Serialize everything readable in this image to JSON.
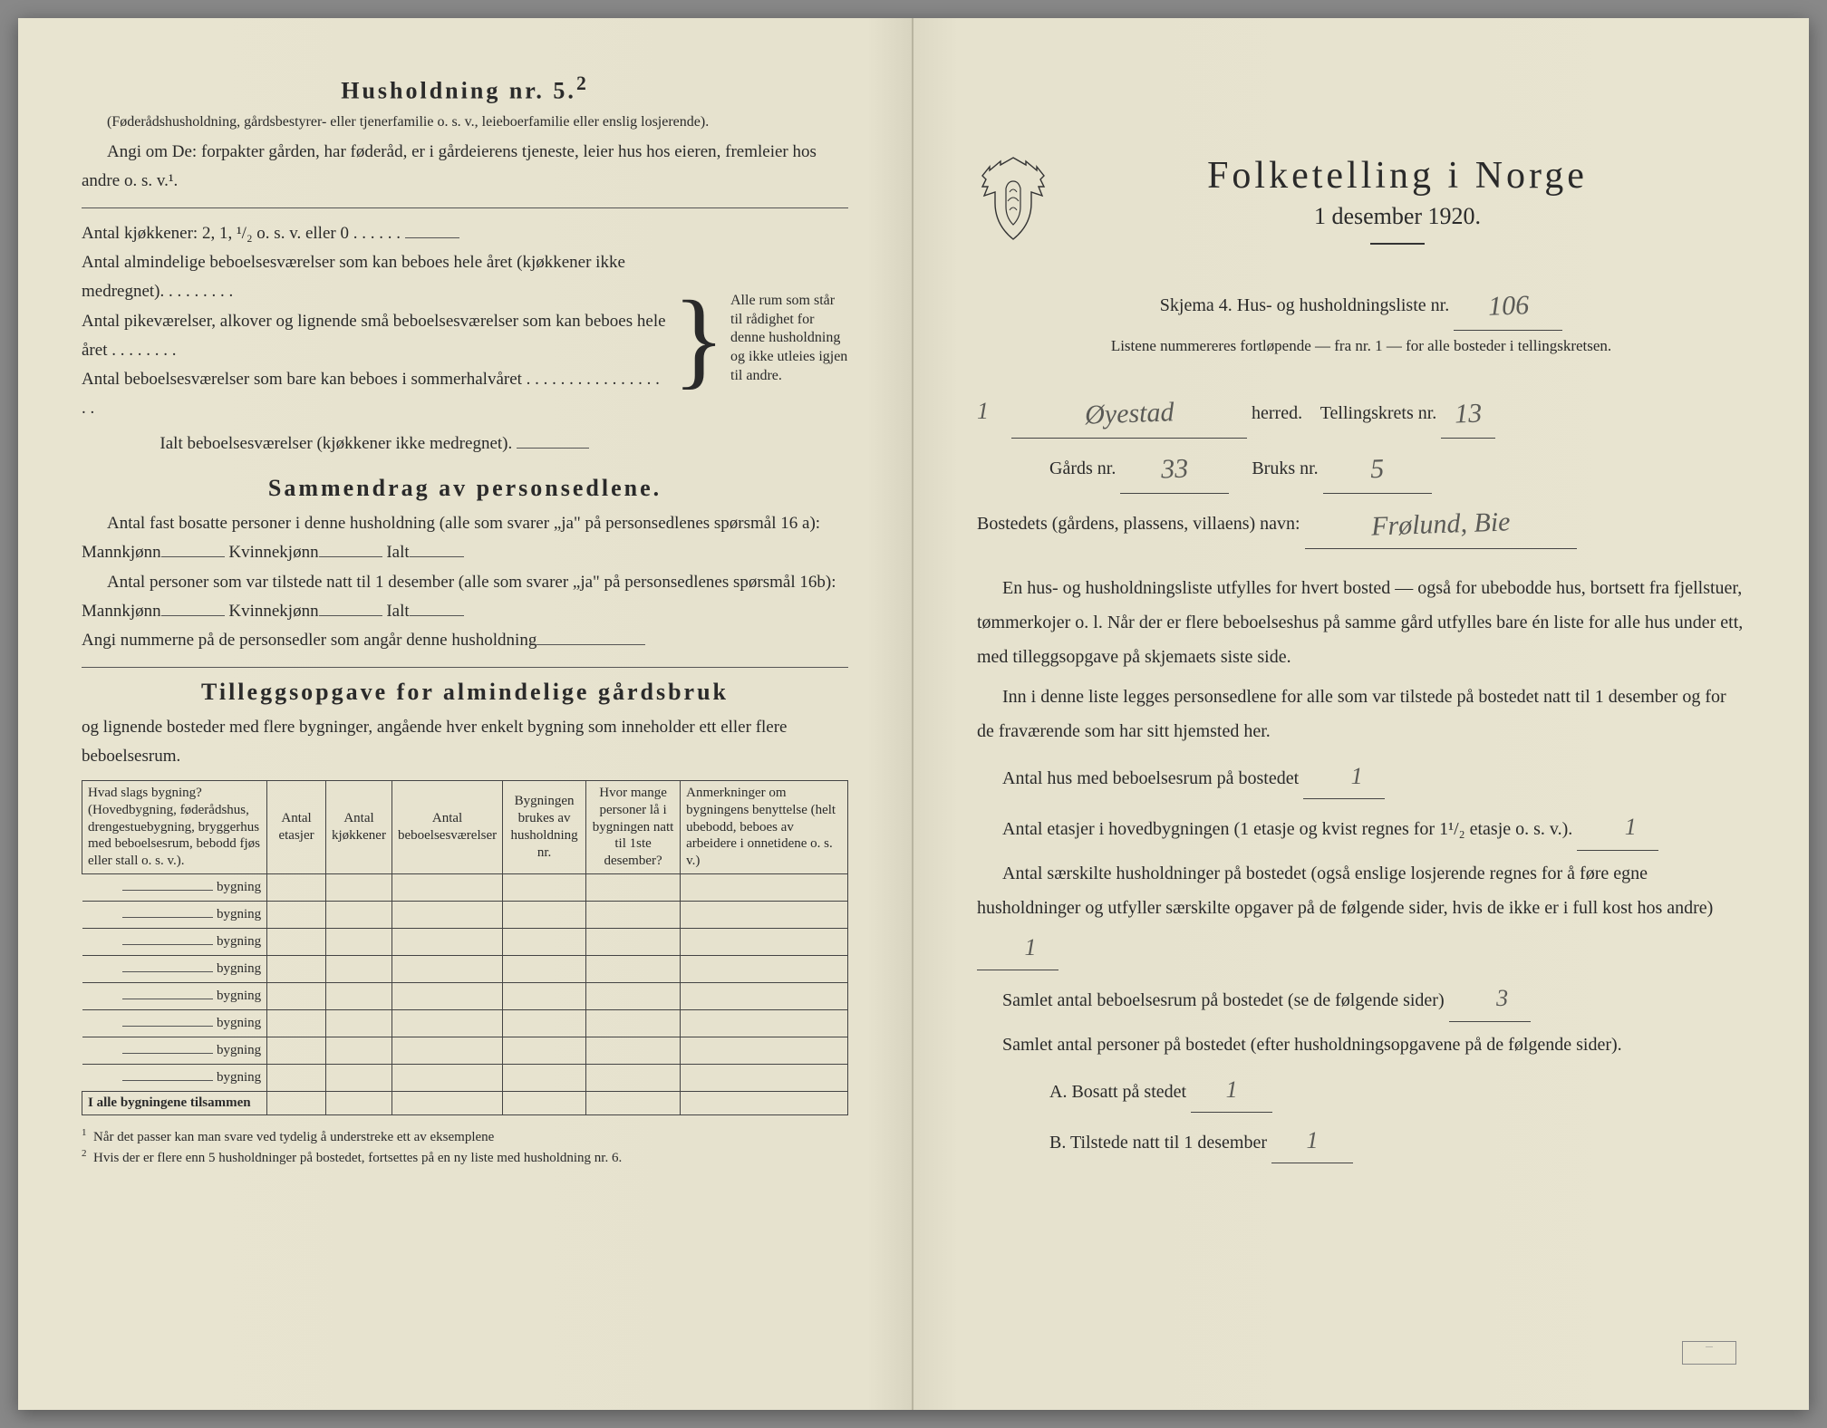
{
  "left": {
    "title": "Husholdning nr. 5.",
    "title_sup": "2",
    "intro_small": "(Føderådshusholdning, gårdsbestyrer- eller tjenerfamilie o. s. v., leieboerfamilie eller enslig losjerende).",
    "intro_line": "Angi om De: forpakter gården, har føderåd, er i gårdeierens tjeneste, leier hus hos eieren, fremleier hos andre o. s. v.¹.",
    "kitchens": "Antal kjøkkener: 2, 1, ¹/₂ o. s. v. eller 0 . . . . . .",
    "rooms1": "Antal almindelige beboelsesværelser som kan beboes hele året (kjøkkener ikke medregnet). . . . . . . . .",
    "rooms2": "Antal pikeværelser, alkover og lignende små beboelsesværelser som kan beboes hele året . . . . . . . .",
    "rooms3": "Antal beboelsesværelser som bare kan beboes i sommerhalvåret . . . . . . . . . . . . . . . . . .",
    "rooms_total": "Ialt beboelsesværelser (kjøkkener ikke medregnet).",
    "brace_text": "Alle rum som står til rådighet for denne husholdning og ikke utleies igjen til andre.",
    "summary_title": "Sammendrag av personsedlene.",
    "summary_l1": "Antal fast bosatte personer i denne husholdning (alle som svarer „ja\" på personsedlenes spørsmål 16 a): Mannkjønn",
    "summary_kvinne": "Kvinnekjønn",
    "summary_ialt": "Ialt",
    "summary_l2": "Antal personer som var tilstede natt til 1 desember (alle som svarer „ja\" på personsedlenes spørsmål 16b): Mannkjønn",
    "summary_l3": "Angi nummerne på de personsedler som angår denne husholdning",
    "tillegg_title": "Tilleggsopgave for almindelige gårdsbruk",
    "tillegg_sub": "og lignende bosteder med flere bygninger, angående hver enkelt bygning som inneholder ett eller flere beboelsesrum.",
    "table": {
      "headers": [
        "Hvad slags bygning?\n(Hovedbygning, føderådshus, drengestuebygning, bryggerhus med beboelsesrum, bebodd fjøs eller stall o. s. v.).",
        "Antal etasjer",
        "Antal kjøkkener",
        "Antal beboelsesværelser",
        "Bygningen brukes av husholdning nr.",
        "Hvor mange personer lå i bygningen natt til 1ste desember?",
        "Anmerkninger om bygningens benyttelse (helt ubebodd, beboes av arbeidere i onnetidene o. s. v.)"
      ],
      "row_label": "bygning",
      "row_count": 8,
      "total_label": "I alle bygningene tilsammen"
    },
    "footnote1": "Når det passer kan man svare ved tydelig å understreke ett av eksemplene",
    "footnote2": "Hvis der er flere enn 5 husholdninger på bostedet, fortsettes på en ny liste med husholdning nr. 6."
  },
  "right": {
    "title": "Folketelling i Norge",
    "date": "1 desember 1920.",
    "skjema": "Skjema 4.   Hus- og husholdningsliste nr.",
    "liste_nr": "106",
    "listene": "Listene nummereres fortløpende — fra nr. 1 — for alle bosteder i tellingskretsen.",
    "herred_hand": "Øyestad",
    "herred_label": "herred.",
    "krets_label": "Tellingskrets nr.",
    "krets_hand": "13",
    "gards_label": "Gårds nr.",
    "gards_hand": "33",
    "bruks_label": "Bruks nr.",
    "bruks_hand": "5",
    "bosted_label": "Bostedets (gårdens, plassens, villaens) navn:",
    "bosted_hand": "Frølund, Bie",
    "para1": "En hus- og husholdningsliste utfylles for hvert bosted — også for ubebodde hus, bortsett fra fjellstuer, tømmerkojer o. l. Når der er flere beboelseshus på samme gård utfylles bare én liste for alle hus under ett, med tilleggsopgave på skjemaets siste side.",
    "para2": "Inn i denne liste legges personsedlene for alle som var tilstede på bostedet natt til 1 desember og for de fraværende som har sitt hjemsted her.",
    "q1": "Antal hus med beboelsesrum på bostedet",
    "q1_hand": "1",
    "q2a": "Antal etasjer i hovedbygningen (1 etasje og kvist regnes for 1¹/₂ etasje o. s. v.).",
    "q2_hand": "1",
    "q3": "Antal særskilte husholdninger på bostedet (også enslige losjerende regnes for å føre egne husholdninger og utfyller særskilte opgaver på de følgende sider, hvis de ikke er i full kost hos andre)",
    "q3_hand": "1",
    "q4": "Samlet antal beboelsesrum på bostedet (se de følgende sider)",
    "q4_hand": "3",
    "q5": "Samlet antal personer på bostedet (efter husholdningsopgavene på de følgende sider).",
    "qA": "A.  Bosatt på stedet",
    "qA_hand": "1",
    "qB": "B.  Tilstede natt til 1 desember",
    "qB_hand": "1"
  }
}
